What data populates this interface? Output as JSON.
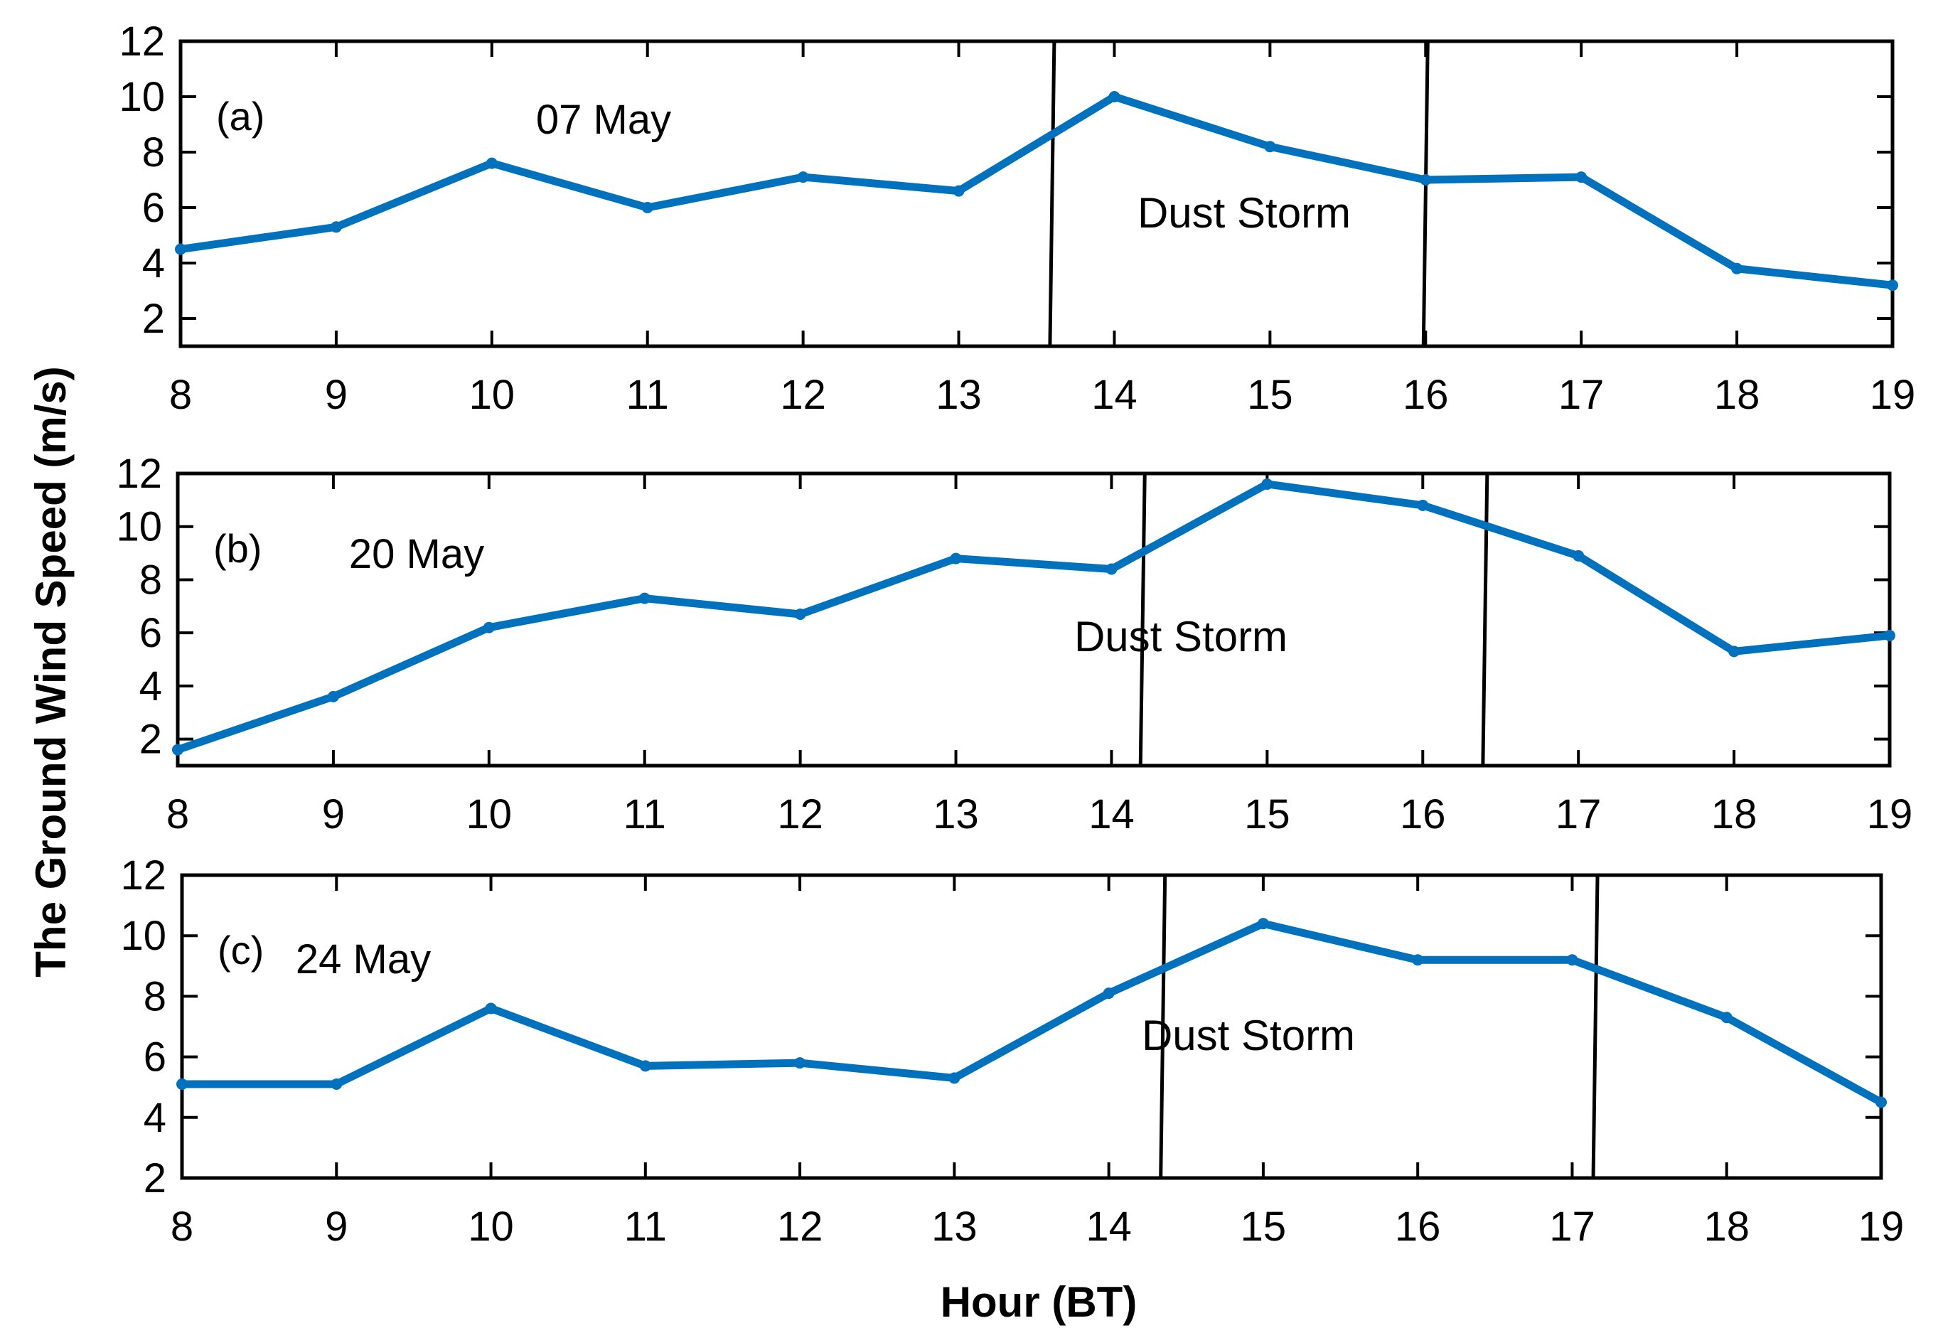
{
  "chart_data": {
    "type": "line",
    "xlabel": "Hour (BT)",
    "ylabel": "The Ground Wind Speed (m/s)",
    "x_ticks": [
      8,
      9,
      10,
      11,
      12,
      13,
      14,
      15,
      16,
      17,
      18,
      19
    ],
    "y_ticks": [
      2,
      4,
      6,
      8,
      10,
      12
    ],
    "xlim": [
      8,
      19
    ],
    "grid": false,
    "line_color": "#0072BD",
    "marker_line_color": "#000000",
    "panels": [
      {
        "tag": "(a)",
        "date_label": "07 May",
        "annotation": "Dust Storm",
        "ylim": [
          1,
          12
        ],
        "storm_start": 13.6,
        "storm_end": 16.0,
        "x": [
          8,
          9,
          10,
          11,
          12,
          13,
          14,
          15,
          16,
          17,
          18,
          19
        ],
        "y": [
          4.5,
          5.3,
          7.6,
          6.0,
          7.1,
          6.6,
          10.0,
          8.2,
          7.0,
          7.1,
          3.8,
          3.2
        ]
      },
      {
        "tag": "(b)",
        "date_label": "20 May",
        "annotation": "Dust Storm",
        "ylim": [
          1,
          12
        ],
        "storm_start": 14.2,
        "storm_end": 16.4,
        "x": [
          8,
          9,
          10,
          11,
          12,
          13,
          14,
          15,
          16,
          17,
          18,
          19
        ],
        "y": [
          1.6,
          3.6,
          6.2,
          7.3,
          6.7,
          8.8,
          8.4,
          11.6,
          10.8,
          8.9,
          5.3,
          5.9
        ]
      },
      {
        "tag": "(c)",
        "date_label": "24 May",
        "annotation": "Dust Storm",
        "ylim": [
          2,
          12
        ],
        "storm_start": 14.35,
        "storm_end": 17.15,
        "x": [
          8,
          9,
          10,
          11,
          12,
          13,
          14,
          15,
          16,
          17,
          18,
          19
        ],
        "y": [
          5.1,
          5.1,
          7.6,
          5.7,
          5.8,
          5.3,
          8.1,
          10.4,
          9.2,
          9.2,
          7.3,
          4.5
        ]
      }
    ]
  }
}
